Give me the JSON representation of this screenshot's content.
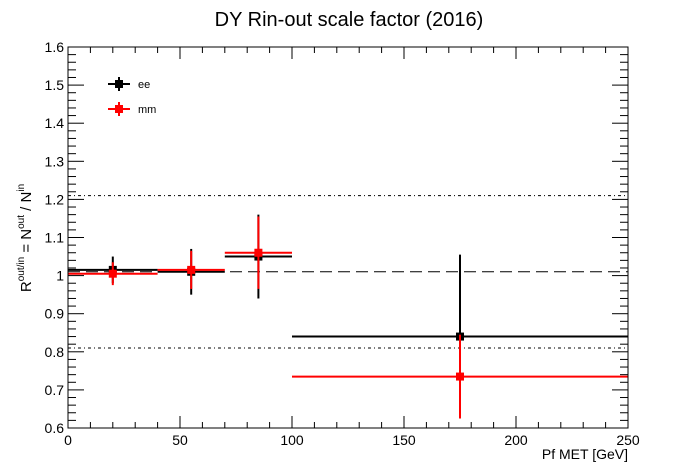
{
  "chart_data": {
    "type": "scatter",
    "title": "DY Rin-out scale factor (2016)",
    "xlabel": "Pf MET [GeV]",
    "ylabel": {
      "base": "R",
      "sup1": "out/in",
      "mid": " = N",
      "sup2": "out",
      "sep": " / N",
      "sup3": "in"
    },
    "xlim": [
      0,
      250
    ],
    "ylim": [
      0.6,
      1.6
    ],
    "x_ticks": [
      0,
      50,
      100,
      150,
      200,
      250
    ],
    "y_ticks": [
      0.6,
      0.7,
      0.8,
      0.9,
      1.0,
      1.1,
      1.2,
      1.3,
      1.4,
      1.5,
      1.6
    ],
    "x_tick_labels": [
      "0",
      "50",
      "100",
      "150",
      "200",
      "250"
    ],
    "y_tick_labels": [
      "0.6",
      "0.7",
      "0.8",
      "0.9",
      "1",
      "1.1",
      "1.2",
      "1.3",
      "1.4",
      "1.5",
      "1.6"
    ],
    "grid": false,
    "legend_position": "top-left",
    "reference_lines": [
      {
        "y": 1.01,
        "style": "dashed"
      },
      {
        "y": 1.21,
        "style": "dash-dot"
      },
      {
        "y": 0.81,
        "style": "dash-dot"
      }
    ],
    "series": [
      {
        "name": "ee",
        "color": "#000000",
        "points": [
          {
            "x": 20,
            "x_lo": 0,
            "x_hi": 40,
            "y": 1.015,
            "y_err": 0.035
          },
          {
            "x": 55,
            "x_lo": 40,
            "x_hi": 70,
            "y": 1.01,
            "y_err": 0.06
          },
          {
            "x": 85,
            "x_lo": 70,
            "x_hi": 100,
            "y": 1.05,
            "y_err": 0.11
          },
          {
            "x": 175,
            "x_lo": 100,
            "x_hi": 250,
            "y": 0.84,
            "y_err": 0.215
          }
        ]
      },
      {
        "name": "mm",
        "color": "#ff0000",
        "points": [
          {
            "x": 20,
            "x_lo": 0,
            "x_hi": 40,
            "y": 1.005,
            "y_err": 0.03
          },
          {
            "x": 55,
            "x_lo": 40,
            "x_hi": 70,
            "y": 1.015,
            "y_err": 0.05
          },
          {
            "x": 85,
            "x_lo": 70,
            "x_hi": 100,
            "y": 1.06,
            "y_err": 0.095
          },
          {
            "x": 175,
            "x_lo": 100,
            "x_hi": 250,
            "y": 0.735,
            "y_err": 0.11
          }
        ]
      }
    ]
  }
}
